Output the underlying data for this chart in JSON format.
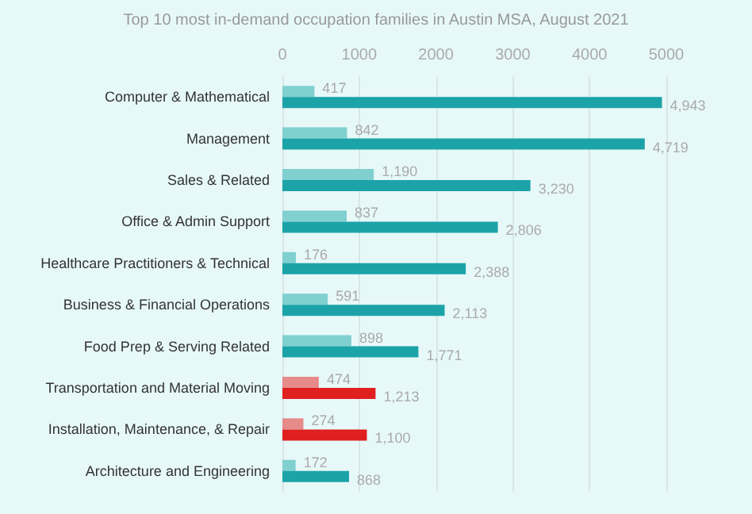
{
  "chart_data": {
    "type": "bar",
    "orientation": "horizontal",
    "subtitle": "Top 10 most in-demand occupation families in Austin MSA, August 2021",
    "categories": [
      "Computer & Mathematical",
      "Management",
      "Sales & Related",
      "Office & Admin Support",
      "Healthcare Practitioners & Technical",
      "Business & Financial Operations",
      "Food Prep & Serving Related",
      "Transportation and Material Moving",
      "Installation, Maintenance, & Repair",
      "Architecture and Engineering"
    ],
    "series": [
      {
        "colors": [
          "#80d0d0",
          "#80d0d0",
          "#80d0d0",
          "#80d0d0",
          "#80d0d0",
          "#80d0d0",
          "#80d0d0",
          "#e68a8a",
          "#e68a8a",
          "#80d0d0"
        ],
        "values": [
          417,
          842,
          1190,
          837,
          176,
          591,
          898,
          474,
          274,
          172
        ],
        "value_labels": [
          "417",
          "842",
          "1,190",
          "837",
          "176",
          "591",
          "898",
          "474",
          "274",
          "172"
        ]
      },
      {
        "colors": [
          "#1ba3a8",
          "#1ba3a8",
          "#1ba3a8",
          "#1ba3a8",
          "#1ba3a8",
          "#1ba3a8",
          "#1ba3a8",
          "#e01f1f",
          "#e01f1f",
          "#1ba3a8"
        ],
        "values": [
          4943,
          4719,
          3230,
          2806,
          2388,
          2113,
          1771,
          1213,
          1100,
          868
        ],
        "value_labels": [
          "4,943",
          "4,719",
          "3,230",
          "2,806",
          "2,388",
          "2,113",
          "1,771",
          "1,213",
          "1,100",
          "868"
        ]
      }
    ],
    "xlim": [
      0,
      5000
    ],
    "xticks": [
      0,
      1000,
      2000,
      3000,
      4000,
      5000
    ],
    "grid": "x"
  }
}
